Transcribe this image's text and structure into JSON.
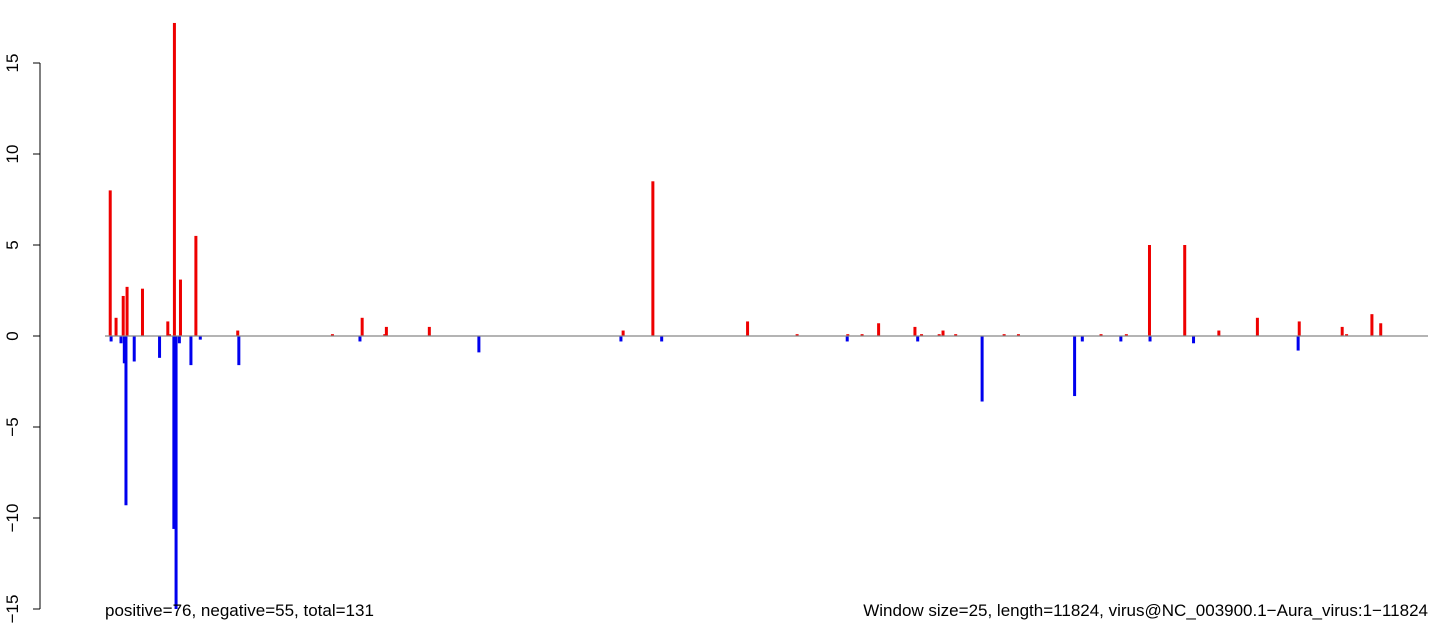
{
  "chart_data": {
    "type": "bar",
    "title": "",
    "xlabel": "",
    "ylabel": "",
    "ylim": [
      -15,
      17.3
    ],
    "xlim": [
      0,
      11824
    ],
    "y_ticks": [
      -15,
      -10,
      -5,
      0,
      5,
      10,
      15
    ],
    "y_tick_labels": [
      "−15",
      "−10",
      "−5",
      "0",
      "5",
      "10",
      "15"
    ],
    "grid": false,
    "baseline": 0,
    "colors": {
      "positive": "#ee0000",
      "negative": "#0000ee",
      "baseline": "#888888"
    },
    "annotations": {
      "counts": "positive=76, negative=55, total=131",
      "window": "Window size=25, length=11824, virus@NC_003900.1−Aura_virus:1−11824"
    },
    "series": [
      {
        "name": "positive",
        "x": [
          2,
          55,
          120,
          155,
          295,
          525,
          540,
          585,
          640,
          780,
          1160,
          2020,
          2290,
          2495,
          2510,
          2900,
          4660,
          4930,
          5790,
          6240,
          6700,
          6830,
          6980,
          7310,
          7370,
          7530,
          7565,
          7680,
          8120,
          8250,
          9000,
          9230,
          9440,
          9760,
          10070,
          10420,
          10800,
          11190,
          11230,
          11460,
          11540
        ],
        "values": [
          8.0,
          1.0,
          2.2,
          2.7,
          2.6,
          0.8,
          0.1,
          17.2,
          3.1,
          5.5,
          0.3,
          0.1,
          1.0,
          0.1,
          0.5,
          0.5,
          0.3,
          8.5,
          0.8,
          0.1,
          0.1,
          0.1,
          0.7,
          0.5,
          0.1,
          0.1,
          0.3,
          0.1,
          0.1,
          0.1,
          0.1,
          0.1,
          5.0,
          5.0,
          0.3,
          1.0,
          0.8,
          0.5,
          0.1,
          1.2,
          0.7
        ]
      },
      {
        "name": "negative",
        "x": [
          10,
          100,
          130,
          145,
          220,
          450,
          580,
          600,
          630,
          735,
          820,
          1170,
          2270,
          3350,
          4640,
          5010,
          6695,
          7335,
          7920,
          8760,
          8830,
          9180,
          9445,
          9840,
          10790
        ],
        "values": [
          -0.3,
          -0.4,
          -1.5,
          -9.3,
          -1.4,
          -1.2,
          -10.6,
          -15.0,
          -0.4,
          -1.6,
          -0.2,
          -1.6,
          -0.3,
          -0.9,
          -0.3,
          -0.3,
          -0.3,
          -0.3,
          -3.6,
          -3.3,
          -0.3,
          -0.3,
          -0.3,
          -0.4,
          -0.8
        ]
      }
    ]
  }
}
